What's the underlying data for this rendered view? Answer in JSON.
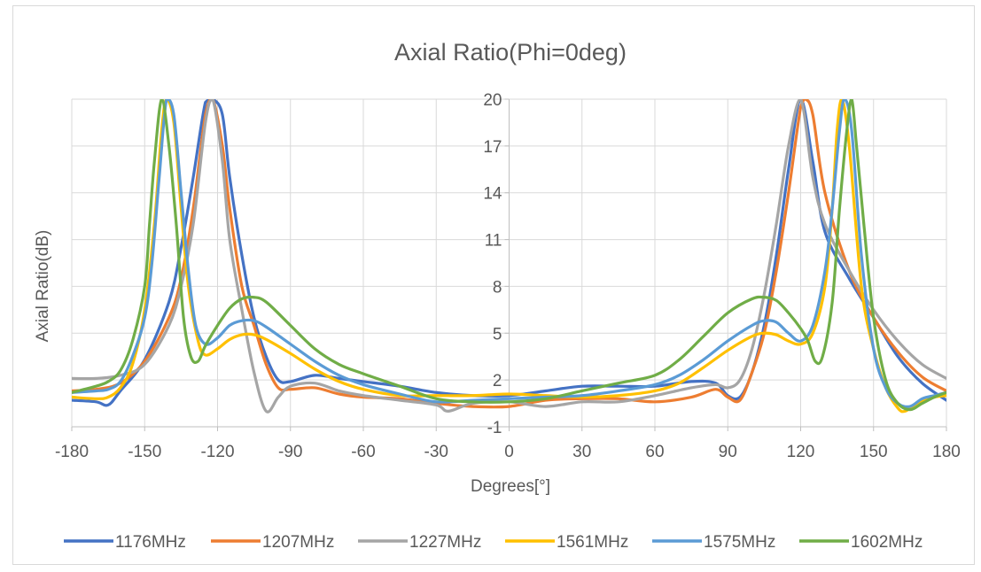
{
  "chart_data": {
    "type": "line",
    "title": "Axial Ratio(Phi=0deg)",
    "xlabel": "Degrees[°]",
    "ylabel": "Axial Ratio(dB)",
    "xlim": [
      -180,
      180
    ],
    "ylim": [
      -1,
      20
    ],
    "x_ticks": [
      -180,
      -150,
      -120,
      -90,
      -60,
      -30,
      0,
      30,
      60,
      90,
      120,
      150,
      180
    ],
    "y_ticks": [
      -1,
      2,
      5,
      8,
      11,
      14,
      17,
      20
    ],
    "grid": true,
    "legend_position": "bottom",
    "series": [
      {
        "name": "1176MHz",
        "color": "#4472C4",
        "points": [
          [
            -180,
            0.7
          ],
          [
            -170,
            0.6
          ],
          [
            -165,
            0.4
          ],
          [
            -160,
            1.3
          ],
          [
            -150,
            3.3
          ],
          [
            -140,
            7.0
          ],
          [
            -135,
            10.5
          ],
          [
            -130,
            15.0
          ],
          [
            -125,
            19.8
          ],
          [
            -122,
            20
          ],
          [
            -118,
            19.0
          ],
          [
            -115,
            15.0
          ],
          [
            -110,
            10.0
          ],
          [
            -105,
            6.0
          ],
          [
            -100,
            3.5
          ],
          [
            -95,
            2.0
          ],
          [
            -90,
            1.9
          ],
          [
            -80,
            2.3
          ],
          [
            -70,
            2.1
          ],
          [
            -60,
            1.9
          ],
          [
            -45,
            1.6
          ],
          [
            -30,
            1.2
          ],
          [
            -15,
            1.0
          ],
          [
            0,
            1.0
          ],
          [
            15,
            1.3
          ],
          [
            30,
            1.6
          ],
          [
            45,
            1.6
          ],
          [
            60,
            1.6
          ],
          [
            75,
            1.9
          ],
          [
            85,
            1.8
          ],
          [
            90,
            1.0
          ],
          [
            95,
            0.9
          ],
          [
            100,
            2.5
          ],
          [
            105,
            5.5
          ],
          [
            110,
            10.0
          ],
          [
            115,
            15.5
          ],
          [
            120,
            20
          ],
          [
            125,
            16.0
          ],
          [
            130,
            11.5
          ],
          [
            140,
            8.5
          ],
          [
            150,
            6.0
          ],
          [
            160,
            3.5
          ],
          [
            170,
            1.8
          ],
          [
            180,
            0.7
          ]
        ]
      },
      {
        "name": "1207MHz",
        "color": "#ED7D31",
        "points": [
          [
            -180,
            1.3
          ],
          [
            -170,
            1.4
          ],
          [
            -160,
            1.8
          ],
          [
            -150,
            3.2
          ],
          [
            -140,
            6.0
          ],
          [
            -135,
            8.5
          ],
          [
            -130,
            13.0
          ],
          [
            -125,
            19.0
          ],
          [
            -122,
            20
          ],
          [
            -118,
            17.0
          ],
          [
            -115,
            13.0
          ],
          [
            -110,
            8.0
          ],
          [
            -105,
            5.5
          ],
          [
            -100,
            3.0
          ],
          [
            -95,
            1.5
          ],
          [
            -90,
            1.4
          ],
          [
            -80,
            1.5
          ],
          [
            -70,
            1.1
          ],
          [
            -60,
            0.9
          ],
          [
            -45,
            0.8
          ],
          [
            -30,
            0.5
          ],
          [
            -15,
            0.3
          ],
          [
            0,
            0.3
          ],
          [
            15,
            0.7
          ],
          [
            30,
            0.8
          ],
          [
            45,
            0.8
          ],
          [
            60,
            0.6
          ],
          [
            75,
            0.9
          ],
          [
            85,
            1.4
          ],
          [
            90,
            0.9
          ],
          [
            95,
            0.7
          ],
          [
            100,
            2.5
          ],
          [
            105,
            5.0
          ],
          [
            110,
            9.0
          ],
          [
            115,
            14.0
          ],
          [
            120,
            19.5
          ],
          [
            122,
            20
          ],
          [
            125,
            19.0
          ],
          [
            130,
            14.0
          ],
          [
            140,
            9.0
          ],
          [
            150,
            6.0
          ],
          [
            160,
            3.8
          ],
          [
            170,
            2.2
          ],
          [
            180,
            1.3
          ]
        ]
      },
      {
        "name": "1227MHz",
        "color": "#A5A5A5",
        "points": [
          [
            -180,
            2.1
          ],
          [
            -170,
            2.1
          ],
          [
            -160,
            2.3
          ],
          [
            -150,
            3.0
          ],
          [
            -140,
            5.5
          ],
          [
            -135,
            8.0
          ],
          [
            -130,
            12.0
          ],
          [
            -125,
            18.5
          ],
          [
            -122,
            20
          ],
          [
            -118,
            16.0
          ],
          [
            -115,
            11.0
          ],
          [
            -110,
            6.5
          ],
          [
            -105,
            2.5
          ],
          [
            -100,
            0.0
          ],
          [
            -95,
            0.9
          ],
          [
            -90,
            1.6
          ],
          [
            -80,
            1.8
          ],
          [
            -70,
            1.3
          ],
          [
            -60,
            1.0
          ],
          [
            -45,
            0.7
          ],
          [
            -30,
            0.4
          ],
          [
            -25,
            0.0
          ],
          [
            -15,
            0.5
          ],
          [
            0,
            0.6
          ],
          [
            15,
            0.3
          ],
          [
            30,
            0.6
          ],
          [
            45,
            0.6
          ],
          [
            60,
            1.0
          ],
          [
            75,
            1.5
          ],
          [
            85,
            1.7
          ],
          [
            90,
            1.5
          ],
          [
            95,
            2.0
          ],
          [
            100,
            4.0
          ],
          [
            105,
            7.5
          ],
          [
            110,
            12.0
          ],
          [
            115,
            17.0
          ],
          [
            120,
            20
          ],
          [
            125,
            15.0
          ],
          [
            130,
            12.0
          ],
          [
            140,
            9.0
          ],
          [
            150,
            6.5
          ],
          [
            160,
            4.5
          ],
          [
            170,
            3.0
          ],
          [
            180,
            2.1
          ]
        ]
      },
      {
        "name": "1561MHz",
        "color": "#FFC000",
        "points": [
          [
            -180,
            0.9
          ],
          [
            -170,
            0.8
          ],
          [
            -165,
            0.9
          ],
          [
            -160,
            1.5
          ],
          [
            -155,
            3.0
          ],
          [
            -150,
            6.5
          ],
          [
            -146,
            12.0
          ],
          [
            -143,
            18.0
          ],
          [
            -141,
            20
          ],
          [
            -138,
            18.5
          ],
          [
            -135,
            13.0
          ],
          [
            -132,
            8.0
          ],
          [
            -128,
            4.5
          ],
          [
            -125,
            3.6
          ],
          [
            -120,
            4.0
          ],
          [
            -115,
            4.6
          ],
          [
            -110,
            4.9
          ],
          [
            -105,
            4.9
          ],
          [
            -100,
            4.6
          ],
          [
            -90,
            3.7
          ],
          [
            -80,
            2.7
          ],
          [
            -70,
            1.9
          ],
          [
            -60,
            1.4
          ],
          [
            -45,
            1.0
          ],
          [
            -30,
            1.0
          ],
          [
            -15,
            1.0
          ],
          [
            0,
            1.1
          ],
          [
            15,
            1.0
          ],
          [
            30,
            0.9
          ],
          [
            45,
            1.0
          ],
          [
            60,
            1.3
          ],
          [
            70,
            1.8
          ],
          [
            80,
            2.8
          ],
          [
            90,
            3.9
          ],
          [
            100,
            4.8
          ],
          [
            105,
            5.0
          ],
          [
            110,
            4.9
          ],
          [
            115,
            4.5
          ],
          [
            120,
            4.3
          ],
          [
            125,
            5.0
          ],
          [
            130,
            8.0
          ],
          [
            133,
            13.0
          ],
          [
            135,
            18.0
          ],
          [
            137,
            20
          ],
          [
            140,
            17.0
          ],
          [
            145,
            8.0
          ],
          [
            150,
            4.0
          ],
          [
            155,
            1.5
          ],
          [
            160,
            0.2
          ],
          [
            163,
            0.0
          ],
          [
            168,
            0.5
          ],
          [
            175,
            0.9
          ],
          [
            180,
            1.0
          ]
        ]
      },
      {
        "name": "1575MHz",
        "color": "#5B9BD5",
        "points": [
          [
            -180,
            1.2
          ],
          [
            -170,
            1.3
          ],
          [
            -165,
            1.4
          ],
          [
            -160,
            1.9
          ],
          [
            -155,
            3.5
          ],
          [
            -150,
            6.0
          ],
          [
            -147,
            9.5
          ],
          [
            -144,
            15.0
          ],
          [
            -141,
            20
          ],
          [
            -138,
            19.0
          ],
          [
            -135,
            14.0
          ],
          [
            -132,
            9.0
          ],
          [
            -129,
            5.5
          ],
          [
            -125,
            4.3
          ],
          [
            -120,
            4.7
          ],
          [
            -115,
            5.5
          ],
          [
            -110,
            5.8
          ],
          [
            -105,
            5.8
          ],
          [
            -100,
            5.4
          ],
          [
            -90,
            4.3
          ],
          [
            -80,
            3.2
          ],
          [
            -70,
            2.3
          ],
          [
            -60,
            1.7
          ],
          [
            -45,
            1.1
          ],
          [
            -30,
            0.6
          ],
          [
            -15,
            0.7
          ],
          [
            0,
            0.8
          ],
          [
            15,
            0.9
          ],
          [
            30,
            1.0
          ],
          [
            45,
            1.3
          ],
          [
            60,
            1.7
          ],
          [
            70,
            2.3
          ],
          [
            80,
            3.3
          ],
          [
            90,
            4.5
          ],
          [
            100,
            5.5
          ],
          [
            105,
            5.8
          ],
          [
            110,
            5.7
          ],
          [
            115,
            5.0
          ],
          [
            120,
            4.5
          ],
          [
            125,
            5.5
          ],
          [
            130,
            9.0
          ],
          [
            133,
            13.0
          ],
          [
            136,
            18.0
          ],
          [
            138,
            20
          ],
          [
            141,
            18.0
          ],
          [
            145,
            10.0
          ],
          [
            150,
            4.0
          ],
          [
            155,
            1.5
          ],
          [
            160,
            0.5
          ],
          [
            165,
            0.3
          ],
          [
            170,
            0.8
          ],
          [
            175,
            1.0
          ],
          [
            180,
            1.2
          ]
        ]
      },
      {
        "name": "1602MHz",
        "color": "#70AD47",
        "points": [
          [
            -180,
            1.2
          ],
          [
            -170,
            1.6
          ],
          [
            -165,
            1.9
          ],
          [
            -160,
            2.6
          ],
          [
            -155,
            4.5
          ],
          [
            -150,
            8.0
          ],
          [
            -148,
            12.0
          ],
          [
            -146,
            16.0
          ],
          [
            -143,
            20
          ],
          [
            -140,
            17.0
          ],
          [
            -137,
            12.0
          ],
          [
            -134,
            6.0
          ],
          [
            -131,
            3.5
          ],
          [
            -128,
            3.2
          ],
          [
            -125,
            4.2
          ],
          [
            -120,
            5.5
          ],
          [
            -115,
            6.6
          ],
          [
            -110,
            7.2
          ],
          [
            -105,
            7.3
          ],
          [
            -100,
            7.0
          ],
          [
            -90,
            5.5
          ],
          [
            -80,
            4.0
          ],
          [
            -70,
            3.0
          ],
          [
            -60,
            2.4
          ],
          [
            -45,
            1.6
          ],
          [
            -30,
            0.8
          ],
          [
            -15,
            0.6
          ],
          [
            0,
            0.6
          ],
          [
            15,
            0.8
          ],
          [
            30,
            1.3
          ],
          [
            45,
            1.8
          ],
          [
            60,
            2.3
          ],
          [
            70,
            3.3
          ],
          [
            80,
            4.8
          ],
          [
            90,
            6.3
          ],
          [
            100,
            7.2
          ],
          [
            105,
            7.3
          ],
          [
            110,
            7.1
          ],
          [
            115,
            6.3
          ],
          [
            120,
            5.3
          ],
          [
            123,
            4.5
          ],
          [
            126,
            3.2
          ],
          [
            129,
            3.5
          ],
          [
            133,
            7.0
          ],
          [
            136,
            13.0
          ],
          [
            139,
            18.0
          ],
          [
            141,
            20
          ],
          [
            143,
            17.0
          ],
          [
            146,
            12.0
          ],
          [
            150,
            6.0
          ],
          [
            155,
            2.0
          ],
          [
            160,
            0.5
          ],
          [
            165,
            0.1
          ],
          [
            170,
            0.5
          ],
          [
            175,
            0.9
          ],
          [
            180,
            1.2
          ]
        ]
      }
    ]
  }
}
